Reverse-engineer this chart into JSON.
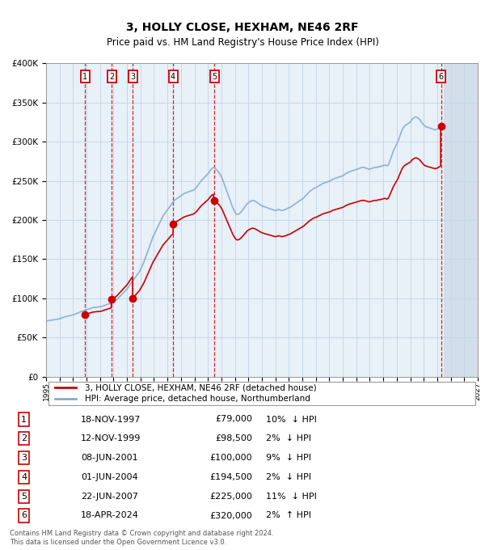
{
  "title": "3, HOLLY CLOSE, HEXHAM, NE46 2RF",
  "subtitle": "Price paid vs. HM Land Registry's House Price Index (HPI)",
  "legend_line1": "3, HOLLY CLOSE, HEXHAM, NE46 2RF (detached house)",
  "legend_line2": "HPI: Average price, detached house, Northumberland",
  "footer1": "Contains HM Land Registry data © Crown copyright and database right 2024.",
  "footer2": "This data is licensed under the Open Government Licence v3.0.",
  "transactions": [
    {
      "num": 1,
      "date": "1997-11-18",
      "price": 79000,
      "pct": "10%",
      "dir": "↓"
    },
    {
      "num": 2,
      "date": "1999-11-12",
      "price": 98500,
      "pct": "2%",
      "dir": "↓"
    },
    {
      "num": 3,
      "date": "2001-06-08",
      "price": 100000,
      "pct": "9%",
      "dir": "↓"
    },
    {
      "num": 4,
      "date": "2004-06-01",
      "price": 194500,
      "pct": "2%",
      "dir": "↓"
    },
    {
      "num": 5,
      "date": "2007-06-22",
      "price": 225000,
      "pct": "11%",
      "dir": "↓"
    },
    {
      "num": 6,
      "date": "2024-04-18",
      "price": 320000,
      "pct": "2%",
      "dir": "↑"
    }
  ],
  "hpi_monthly": {
    "1995-01": 71000,
    "1995-02": 71200,
    "1995-03": 71500,
    "1995-04": 71800,
    "1995-05": 72000,
    "1995-06": 72300,
    "1995-07": 72500,
    "1995-08": 72700,
    "1995-09": 73000,
    "1995-10": 73200,
    "1995-11": 73400,
    "1995-12": 73600,
    "1996-01": 74000,
    "1996-02": 74500,
    "1996-03": 75000,
    "1996-04": 75500,
    "1996-05": 76000,
    "1996-06": 76500,
    "1996-07": 77000,
    "1996-08": 77300,
    "1996-09": 77600,
    "1996-10": 78000,
    "1996-11": 78300,
    "1996-12": 78600,
    "1997-01": 79000,
    "1997-02": 79500,
    "1997-03": 80000,
    "1997-04": 80500,
    "1997-05": 81200,
    "1997-06": 81800,
    "1997-07": 82500,
    "1997-08": 83000,
    "1997-09": 83500,
    "1997-10": 84000,
    "1997-11": 84500,
    "1997-12": 85000,
    "1998-01": 85500,
    "1998-02": 86000,
    "1998-03": 86500,
    "1998-04": 87000,
    "1998-05": 87500,
    "1998-06": 88000,
    "1998-07": 88300,
    "1998-08": 88500,
    "1998-09": 88700,
    "1998-10": 88800,
    "1998-11": 88900,
    "1998-12": 89000,
    "1999-01": 89200,
    "1999-02": 89500,
    "1999-03": 90000,
    "1999-04": 90500,
    "1999-05": 91000,
    "1999-06": 91500,
    "1999-07": 92000,
    "1999-08": 92500,
    "1999-09": 93000,
    "1999-10": 93500,
    "1999-11": 94000,
    "1999-12": 94500,
    "2000-01": 95500,
    "2000-02": 96500,
    "2000-03": 97500,
    "2000-04": 98500,
    "2000-05": 100000,
    "2000-06": 101500,
    "2000-07": 103000,
    "2000-08": 104500,
    "2000-09": 106000,
    "2000-10": 107500,
    "2000-11": 109000,
    "2000-12": 110500,
    "2001-01": 112000,
    "2001-02": 114000,
    "2001-03": 116000,
    "2001-04": 118000,
    "2001-05": 120000,
    "2001-06": 122000,
    "2001-07": 124000,
    "2001-08": 126000,
    "2001-09": 128000,
    "2001-10": 130000,
    "2001-11": 132000,
    "2001-12": 134000,
    "2002-01": 137000,
    "2002-02": 140000,
    "2002-03": 143000,
    "2002-04": 146000,
    "2002-05": 150000,
    "2002-06": 154000,
    "2002-07": 158000,
    "2002-08": 162000,
    "2002-09": 166000,
    "2002-10": 170000,
    "2002-11": 174000,
    "2002-12": 178000,
    "2003-01": 181000,
    "2003-02": 184000,
    "2003-03": 187000,
    "2003-04": 190000,
    "2003-05": 193000,
    "2003-06": 196000,
    "2003-07": 199000,
    "2003-08": 202000,
    "2003-09": 205000,
    "2003-10": 207000,
    "2003-11": 209000,
    "2003-12": 211000,
    "2004-01": 213000,
    "2004-02": 215000,
    "2004-03": 217000,
    "2004-04": 219000,
    "2004-05": 221000,
    "2004-06": 223000,
    "2004-07": 225000,
    "2004-08": 226000,
    "2004-09": 227000,
    "2004-10": 228000,
    "2004-11": 229000,
    "2004-12": 230000,
    "2005-01": 231000,
    "2005-02": 232000,
    "2005-03": 233000,
    "2005-04": 234000,
    "2005-05": 234500,
    "2005-06": 235000,
    "2005-07": 235500,
    "2005-08": 236000,
    "2005-09": 236500,
    "2005-10": 237000,
    "2005-11": 237500,
    "2005-12": 238000,
    "2006-01": 239000,
    "2006-02": 240500,
    "2006-03": 242000,
    "2006-04": 244000,
    "2006-05": 246000,
    "2006-06": 248000,
    "2006-07": 250000,
    "2006-08": 251500,
    "2006-09": 253000,
    "2006-10": 254500,
    "2006-11": 256000,
    "2006-12": 257500,
    "2007-01": 259000,
    "2007-02": 261000,
    "2007-03": 263000,
    "2007-04": 265000,
    "2007-05": 266000,
    "2007-06": 267000,
    "2007-07": 266500,
    "2007-08": 265000,
    "2007-09": 263500,
    "2007-10": 262000,
    "2007-11": 260000,
    "2007-12": 258000,
    "2008-01": 255000,
    "2008-02": 252000,
    "2008-03": 248000,
    "2008-04": 244000,
    "2008-05": 240000,
    "2008-06": 236000,
    "2008-07": 232000,
    "2008-08": 228000,
    "2008-09": 224000,
    "2008-10": 220000,
    "2008-11": 216000,
    "2008-12": 213000,
    "2009-01": 210000,
    "2009-02": 208000,
    "2009-03": 207000,
    "2009-04": 207500,
    "2009-05": 208000,
    "2009-06": 209500,
    "2009-07": 211000,
    "2009-08": 213000,
    "2009-09": 215000,
    "2009-10": 217000,
    "2009-11": 219000,
    "2009-12": 221000,
    "2010-01": 222000,
    "2010-02": 223000,
    "2010-03": 224000,
    "2010-04": 224500,
    "2010-05": 225000,
    "2010-06": 224500,
    "2010-07": 224000,
    "2010-08": 223000,
    "2010-09": 222000,
    "2010-10": 221000,
    "2010-11": 220000,
    "2010-12": 219000,
    "2011-01": 218000,
    "2011-02": 217500,
    "2011-03": 217000,
    "2011-04": 216500,
    "2011-05": 216000,
    "2011-06": 215500,
    "2011-07": 215000,
    "2011-08": 214500,
    "2011-09": 214000,
    "2011-10": 213500,
    "2011-11": 213000,
    "2011-12": 212500,
    "2012-01": 212000,
    "2012-02": 212500,
    "2012-03": 213000,
    "2012-04": 213500,
    "2012-05": 213000,
    "2012-06": 212500,
    "2012-07": 212000,
    "2012-08": 212500,
    "2012-09": 213000,
    "2012-10": 213500,
    "2012-11": 214000,
    "2012-12": 215000,
    "2013-01": 215500,
    "2013-02": 216000,
    "2013-03": 217000,
    "2013-04": 218000,
    "2013-05": 219000,
    "2013-06": 220000,
    "2013-07": 221000,
    "2013-08": 222000,
    "2013-09": 223000,
    "2013-10": 224000,
    "2013-11": 225000,
    "2013-12": 226000,
    "2014-01": 227000,
    "2014-02": 228000,
    "2014-03": 229500,
    "2014-04": 231000,
    "2014-05": 232500,
    "2014-06": 234000,
    "2014-07": 235500,
    "2014-08": 237000,
    "2014-09": 238000,
    "2014-10": 239000,
    "2014-11": 240000,
    "2014-12": 241000,
    "2015-01": 241500,
    "2015-02": 242000,
    "2015-03": 243000,
    "2015-04": 244000,
    "2015-05": 244500,
    "2015-06": 245500,
    "2015-07": 246500,
    "2015-08": 247000,
    "2015-09": 247500,
    "2015-10": 248000,
    "2015-11": 248500,
    "2015-12": 249000,
    "2016-01": 249500,
    "2016-02": 250000,
    "2016-03": 251000,
    "2016-04": 252000,
    "2016-05": 252500,
    "2016-06": 253000,
    "2016-07": 253500,
    "2016-08": 254000,
    "2016-09": 254500,
    "2016-10": 255000,
    "2016-11": 255500,
    "2016-12": 256000,
    "2017-01": 256500,
    "2017-02": 257500,
    "2017-03": 258500,
    "2017-04": 259500,
    "2017-05": 260000,
    "2017-06": 261000,
    "2017-07": 261500,
    "2017-08": 262000,
    "2017-09": 262500,
    "2017-10": 263000,
    "2017-11": 263500,
    "2017-12": 264000,
    "2018-01": 264500,
    "2018-02": 265000,
    "2018-03": 265500,
    "2018-04": 266000,
    "2018-05": 266500,
    "2018-06": 267000,
    "2018-07": 267000,
    "2018-08": 267000,
    "2018-09": 266500,
    "2018-10": 266000,
    "2018-11": 265500,
    "2018-12": 265000,
    "2019-01": 265000,
    "2019-02": 265500,
    "2019-03": 266000,
    "2019-04": 266500,
    "2019-05": 267000,
    "2019-06": 267000,
    "2019-07": 267000,
    "2019-08": 267500,
    "2019-09": 268000,
    "2019-10": 268000,
    "2019-11": 268500,
    "2019-12": 269000,
    "2020-01": 269500,
    "2020-02": 270000,
    "2020-03": 270000,
    "2020-04": 269000,
    "2020-05": 269500,
    "2020-06": 272000,
    "2020-07": 276000,
    "2020-08": 280000,
    "2020-09": 284000,
    "2020-10": 288000,
    "2020-11": 291000,
    "2020-12": 294000,
    "2021-01": 297000,
    "2021-02": 300000,
    "2021-03": 304000,
    "2021-04": 308000,
    "2021-05": 312000,
    "2021-06": 316000,
    "2021-07": 318000,
    "2021-08": 320000,
    "2021-09": 321000,
    "2021-10": 322000,
    "2021-11": 323000,
    "2021-12": 324000,
    "2022-01": 325000,
    "2022-02": 327000,
    "2022-03": 329000,
    "2022-04": 330000,
    "2022-05": 331000,
    "2022-06": 331500,
    "2022-07": 331000,
    "2022-08": 330000,
    "2022-09": 329000,
    "2022-10": 327000,
    "2022-11": 325000,
    "2022-12": 323000,
    "2023-01": 321000,
    "2023-02": 320000,
    "2023-03": 319000,
    "2023-04": 318500,
    "2023-05": 318000,
    "2023-06": 317500,
    "2023-07": 317000,
    "2023-08": 316500,
    "2023-09": 316000,
    "2023-10": 315500,
    "2023-11": 315000,
    "2023-12": 315500,
    "2024-01": 316000,
    "2024-02": 317000,
    "2024-03": 318000,
    "2024-04": 319000,
    "2024-05": 320000,
    "2024-06": 321000
  },
  "price_color": "#cc0000",
  "hpi_color": "#88aacc",
  "vline_color_sale": "#cc0000",
  "vline_color_other": "#aaaacc",
  "box_color": "#cc0000",
  "grid_color": "#c8d8e8",
  "plot_bg": "#e8f0f8",
  "hatch_color": "#d0dce8",
  "ylim": [
    0,
    400000
  ],
  "yticks": [
    0,
    50000,
    100000,
    150000,
    200000,
    250000,
    300000,
    350000,
    400000
  ],
  "ytick_labels": [
    "£0",
    "£50K",
    "£100K",
    "£150K",
    "£200K",
    "£250K",
    "£300K",
    "£350K",
    "£400K"
  ],
  "xlim_start": "1995-01-01",
  "xlim_end": "2027-01-01",
  "future_start": "2024-07-01",
  "xtick_years": [
    1995,
    1996,
    1997,
    1998,
    1999,
    2000,
    2001,
    2002,
    2003,
    2004,
    2005,
    2006,
    2007,
    2008,
    2009,
    2010,
    2011,
    2012,
    2013,
    2014,
    2015,
    2016,
    2017,
    2018,
    2019,
    2020,
    2021,
    2022,
    2023,
    2024,
    2025,
    2026,
    2027
  ]
}
